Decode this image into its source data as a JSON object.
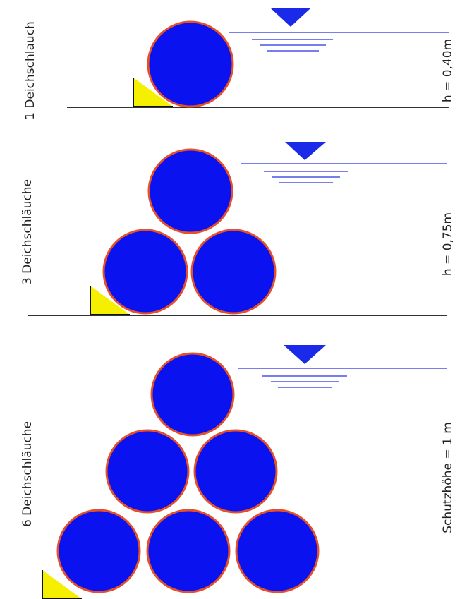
{
  "colors": {
    "tube_fill": "#0a12f0",
    "tube_outline": "#e5502a",
    "wedge_fill": "#f5f000",
    "wedge_outline": "#111111",
    "ground": "#333333",
    "water_line": "#4a55e8",
    "water_triangle": "#1a2ae8",
    "text": "#222222"
  },
  "panels": [
    {
      "left_label": "1 Deichschlauch",
      "right_label": "h = 0,40m",
      "tube_count": 1
    },
    {
      "left_label": "3 Deichschläuche",
      "right_label": "h = 0,75m",
      "tube_count": 3
    },
    {
      "left_label": "6 Deichschläuche",
      "right_label": "Schutzhöhe = 1 m",
      "tube_count": 6
    }
  ]
}
